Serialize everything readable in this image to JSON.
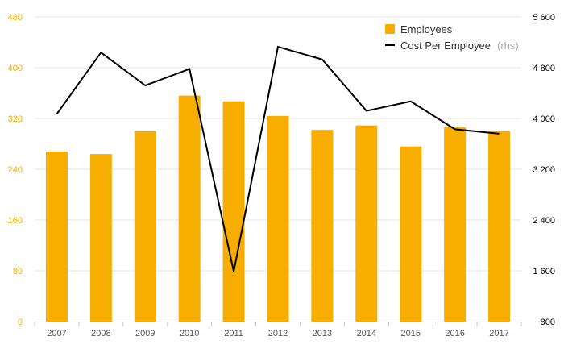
{
  "chart_data": {
    "type": "bar",
    "categories": [
      "2007",
      "2008",
      "2009",
      "2010",
      "2011",
      "2012",
      "2013",
      "2014",
      "2015",
      "2016",
      "2017"
    ],
    "series": [
      {
        "name": "Employees",
        "type": "bar",
        "axis": "left",
        "color": "#F7AE00",
        "values": [
          268,
          264,
          300,
          356,
          347,
          324,
          302,
          309,
          276,
          306,
          300
        ]
      },
      {
        "name": "Cost Per Employee",
        "name_suffix": "(rhs)",
        "type": "line",
        "axis": "right",
        "color": "#000000",
        "values": [
          4070,
          5040,
          4520,
          4780,
          1590,
          5130,
          4930,
          4120,
          4270,
          3830,
          3760
        ]
      }
    ],
    "ylim_left": [
      0,
      480
    ],
    "yticks_left": [
      "0",
      "80",
      "160",
      "240",
      "320",
      "400",
      "480"
    ],
    "ylim_right": [
      800,
      5600
    ],
    "yticks_right": [
      "800",
      "1 600",
      "2 400",
      "3 200",
      "4 000",
      "4 800",
      "5 600"
    ],
    "title": "",
    "xlabel": "",
    "ylabel": "",
    "grid": true,
    "legend_position": "top-right"
  }
}
